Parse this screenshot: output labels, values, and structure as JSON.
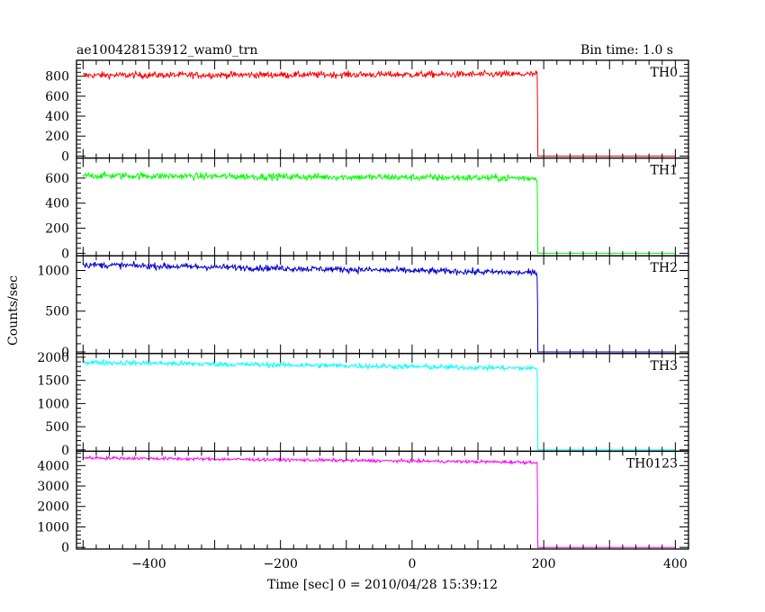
{
  "chart_data": {
    "type": "line",
    "title": "ae100428153912_wam0_trn",
    "subtitle": "Bin time: 1.0 s",
    "xlabel": "Time [sec] 0 = 2010/04/28 15:39:12",
    "ylabel": "Counts/sec",
    "xlim": [
      -510,
      420
    ],
    "x_ticks": [
      -400,
      -200,
      0,
      200,
      400
    ],
    "x_tick_labels": [
      "−400",
      "−200",
      "0",
      "200",
      "400"
    ],
    "grid": false,
    "legend": "none",
    "data_start_x": -500,
    "drop_x": 190,
    "end_x": 400,
    "panels": [
      {
        "name": "TH0",
        "color": "#ff0000",
        "ylim": [
          -20,
          960
        ],
        "y_ticks": [
          0,
          200,
          400,
          600,
          800
        ],
        "y_tick_labels": [
          "0",
          "200",
          "400",
          "600",
          "800"
        ],
        "level_start": 810,
        "level_end": 820,
        "noise": 30,
        "after_drop": 0
      },
      {
        "name": "TH1",
        "color": "#00ff00",
        "ylim": [
          -20,
          760
        ],
        "y_ticks": [
          0,
          200,
          400,
          600
        ],
        "y_tick_labels": [
          "0",
          "200",
          "400",
          "600"
        ],
        "level_start": 620,
        "level_end": 600,
        "noise": 25,
        "after_drop": 0
      },
      {
        "name": "TH2",
        "color": "#0000cc",
        "ylim": [
          -20,
          1180
        ],
        "y_ticks": [
          0,
          500,
          1000
        ],
        "y_tick_labels": [
          "0",
          "500",
          "1000"
        ],
        "level_start": 1070,
        "level_end": 970,
        "noise": 35,
        "after_drop": 0
      },
      {
        "name": "TH3",
        "color": "#00ffff",
        "ylim": [
          -30,
          2080
        ],
        "y_ticks": [
          0,
          500,
          1000,
          1500,
          2000
        ],
        "y_tick_labels": [
          "0",
          "500",
          "1000",
          "1500",
          "2000"
        ],
        "level_start": 1890,
        "level_end": 1760,
        "noise": 50,
        "after_drop": 0
      },
      {
        "name": "TH0123",
        "color": "#ff00ff",
        "ylim": [
          -80,
          4700
        ],
        "y_ticks": [
          0,
          1000,
          2000,
          3000,
          4000
        ],
        "y_tick_labels": [
          "0",
          "1000",
          "2000",
          "3000",
          "4000"
        ],
        "level_start": 4380,
        "level_end": 4160,
        "noise": 70,
        "after_drop": 0
      }
    ]
  }
}
